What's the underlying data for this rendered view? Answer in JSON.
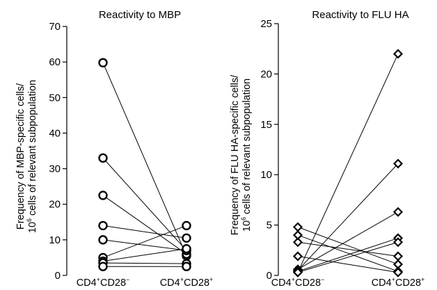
{
  "chart_data": [
    {
      "type": "scatter",
      "title": "Reactivity to MBP",
      "ylabel_line1": "Frequency of MBP-specific cells/",
      "ylabel_line2_sup": "6",
      "ylabel_line2_pre": "10",
      "ylabel_line2_post": " cells of relevant subpopulation",
      "ylim": [
        0,
        70
      ],
      "yticks": [
        "0",
        "10",
        "20",
        "30",
        "40",
        "50",
        "60",
        "70"
      ],
      "ytick_values": [
        0,
        10,
        20,
        30,
        40,
        50,
        60,
        70
      ],
      "categories": [
        {
          "base": "CD4",
          "sup1": "+",
          "mid": "CD28",
          "sup2": "−"
        },
        {
          "base": "CD4",
          "sup1": "+",
          "mid": "CD28",
          "sup2": "+"
        }
      ],
      "marker": "circle",
      "pairs": [
        [
          59.8,
          5.5
        ],
        [
          33.0,
          7.0
        ],
        [
          22.5,
          6.0
        ],
        [
          14.0,
          10.5
        ],
        [
          10.0,
          7.0
        ],
        [
          5.0,
          14.0
        ],
        [
          4.0,
          7.5
        ],
        [
          3.5,
          3.3
        ],
        [
          2.5,
          2.5
        ]
      ]
    },
    {
      "type": "scatter",
      "title": "Reactivity to FLU HA",
      "ylabel_line1": "Frequency of FLU HA-specific cells/",
      "ylabel_line2_sup": "6",
      "ylabel_line2_pre": "10",
      "ylabel_line2_post": " cells of relevant subpopulation",
      "ylim": [
        0,
        25
      ],
      "yticks": [
        "0",
        "5",
        "10",
        "15",
        "20",
        "25"
      ],
      "ytick_values": [
        0,
        5,
        10,
        15,
        20,
        25
      ],
      "categories": [
        {
          "base": "CD4",
          "sup1": "+",
          "mid": "CD28",
          "sup2": "−"
        },
        {
          "base": "CD4",
          "sup1": "+",
          "mid": "CD28",
          "sup2": "+"
        }
      ],
      "marker": "diamond",
      "pairs": [
        [
          0.3,
          22.0
        ],
        [
          0.5,
          11.1
        ],
        [
          0.6,
          6.3
        ],
        [
          0.4,
          3.7
        ],
        [
          0.3,
          3.3
        ],
        [
          3.3,
          1.9
        ],
        [
          4.8,
          1.1
        ],
        [
          4.0,
          0.4
        ],
        [
          1.9,
          0.3
        ]
      ]
    }
  ]
}
